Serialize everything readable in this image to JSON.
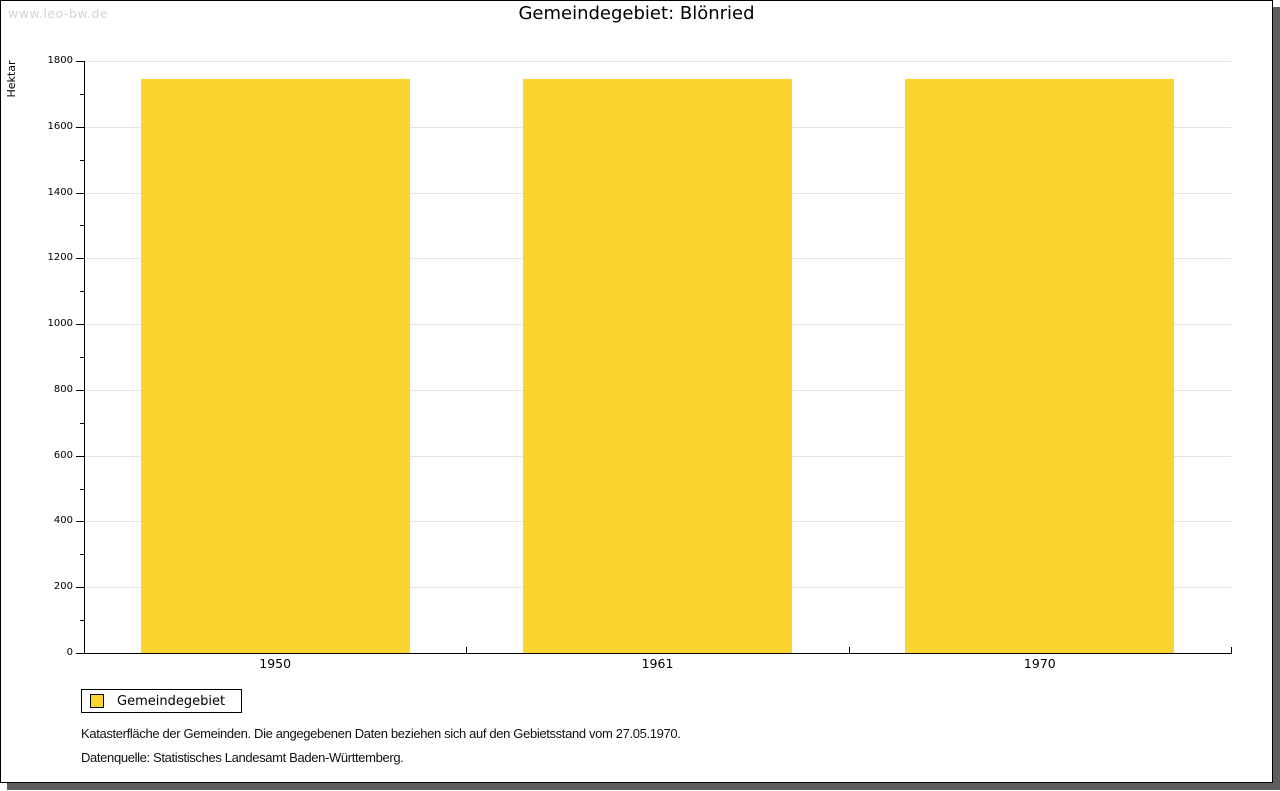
{
  "page": {
    "watermark": "www.leo-bw.de",
    "title": "Gemeindegebiet: Blönried"
  },
  "chart_data": {
    "type": "bar",
    "title": "Gemeindegebiet: Blönried",
    "categories": [
      "1950",
      "1961",
      "1970"
    ],
    "series": [
      {
        "name": "Gemeindegebiet",
        "values": [
          1745,
          1745,
          1745
        ]
      }
    ],
    "xlabel": "",
    "ylabel": "Hektar",
    "ylim": [
      0,
      1800
    ],
    "ytick_major": 200,
    "ytick_minor": 100,
    "grid": true,
    "legend_position": "bottom-left",
    "bar_color": "#FCD42F"
  },
  "legend": {
    "items": [
      {
        "label": "Gemeindegebiet",
        "color": "#FCD42F"
      }
    ]
  },
  "footer": {
    "line1": "Katasterfläche der Gemeinden. Die angegebenen Daten beziehen sich auf den Gebietsstand vom 27.05.1970.",
    "line2": "Datenquelle: Statistisches Landesamt Baden-Württemberg."
  },
  "colors": {
    "bar": "#FCD42F",
    "gridline": "#e4e4e4",
    "axis": "#000000",
    "watermark": "#d4d4d4",
    "shadow": "#5e5e5e"
  }
}
